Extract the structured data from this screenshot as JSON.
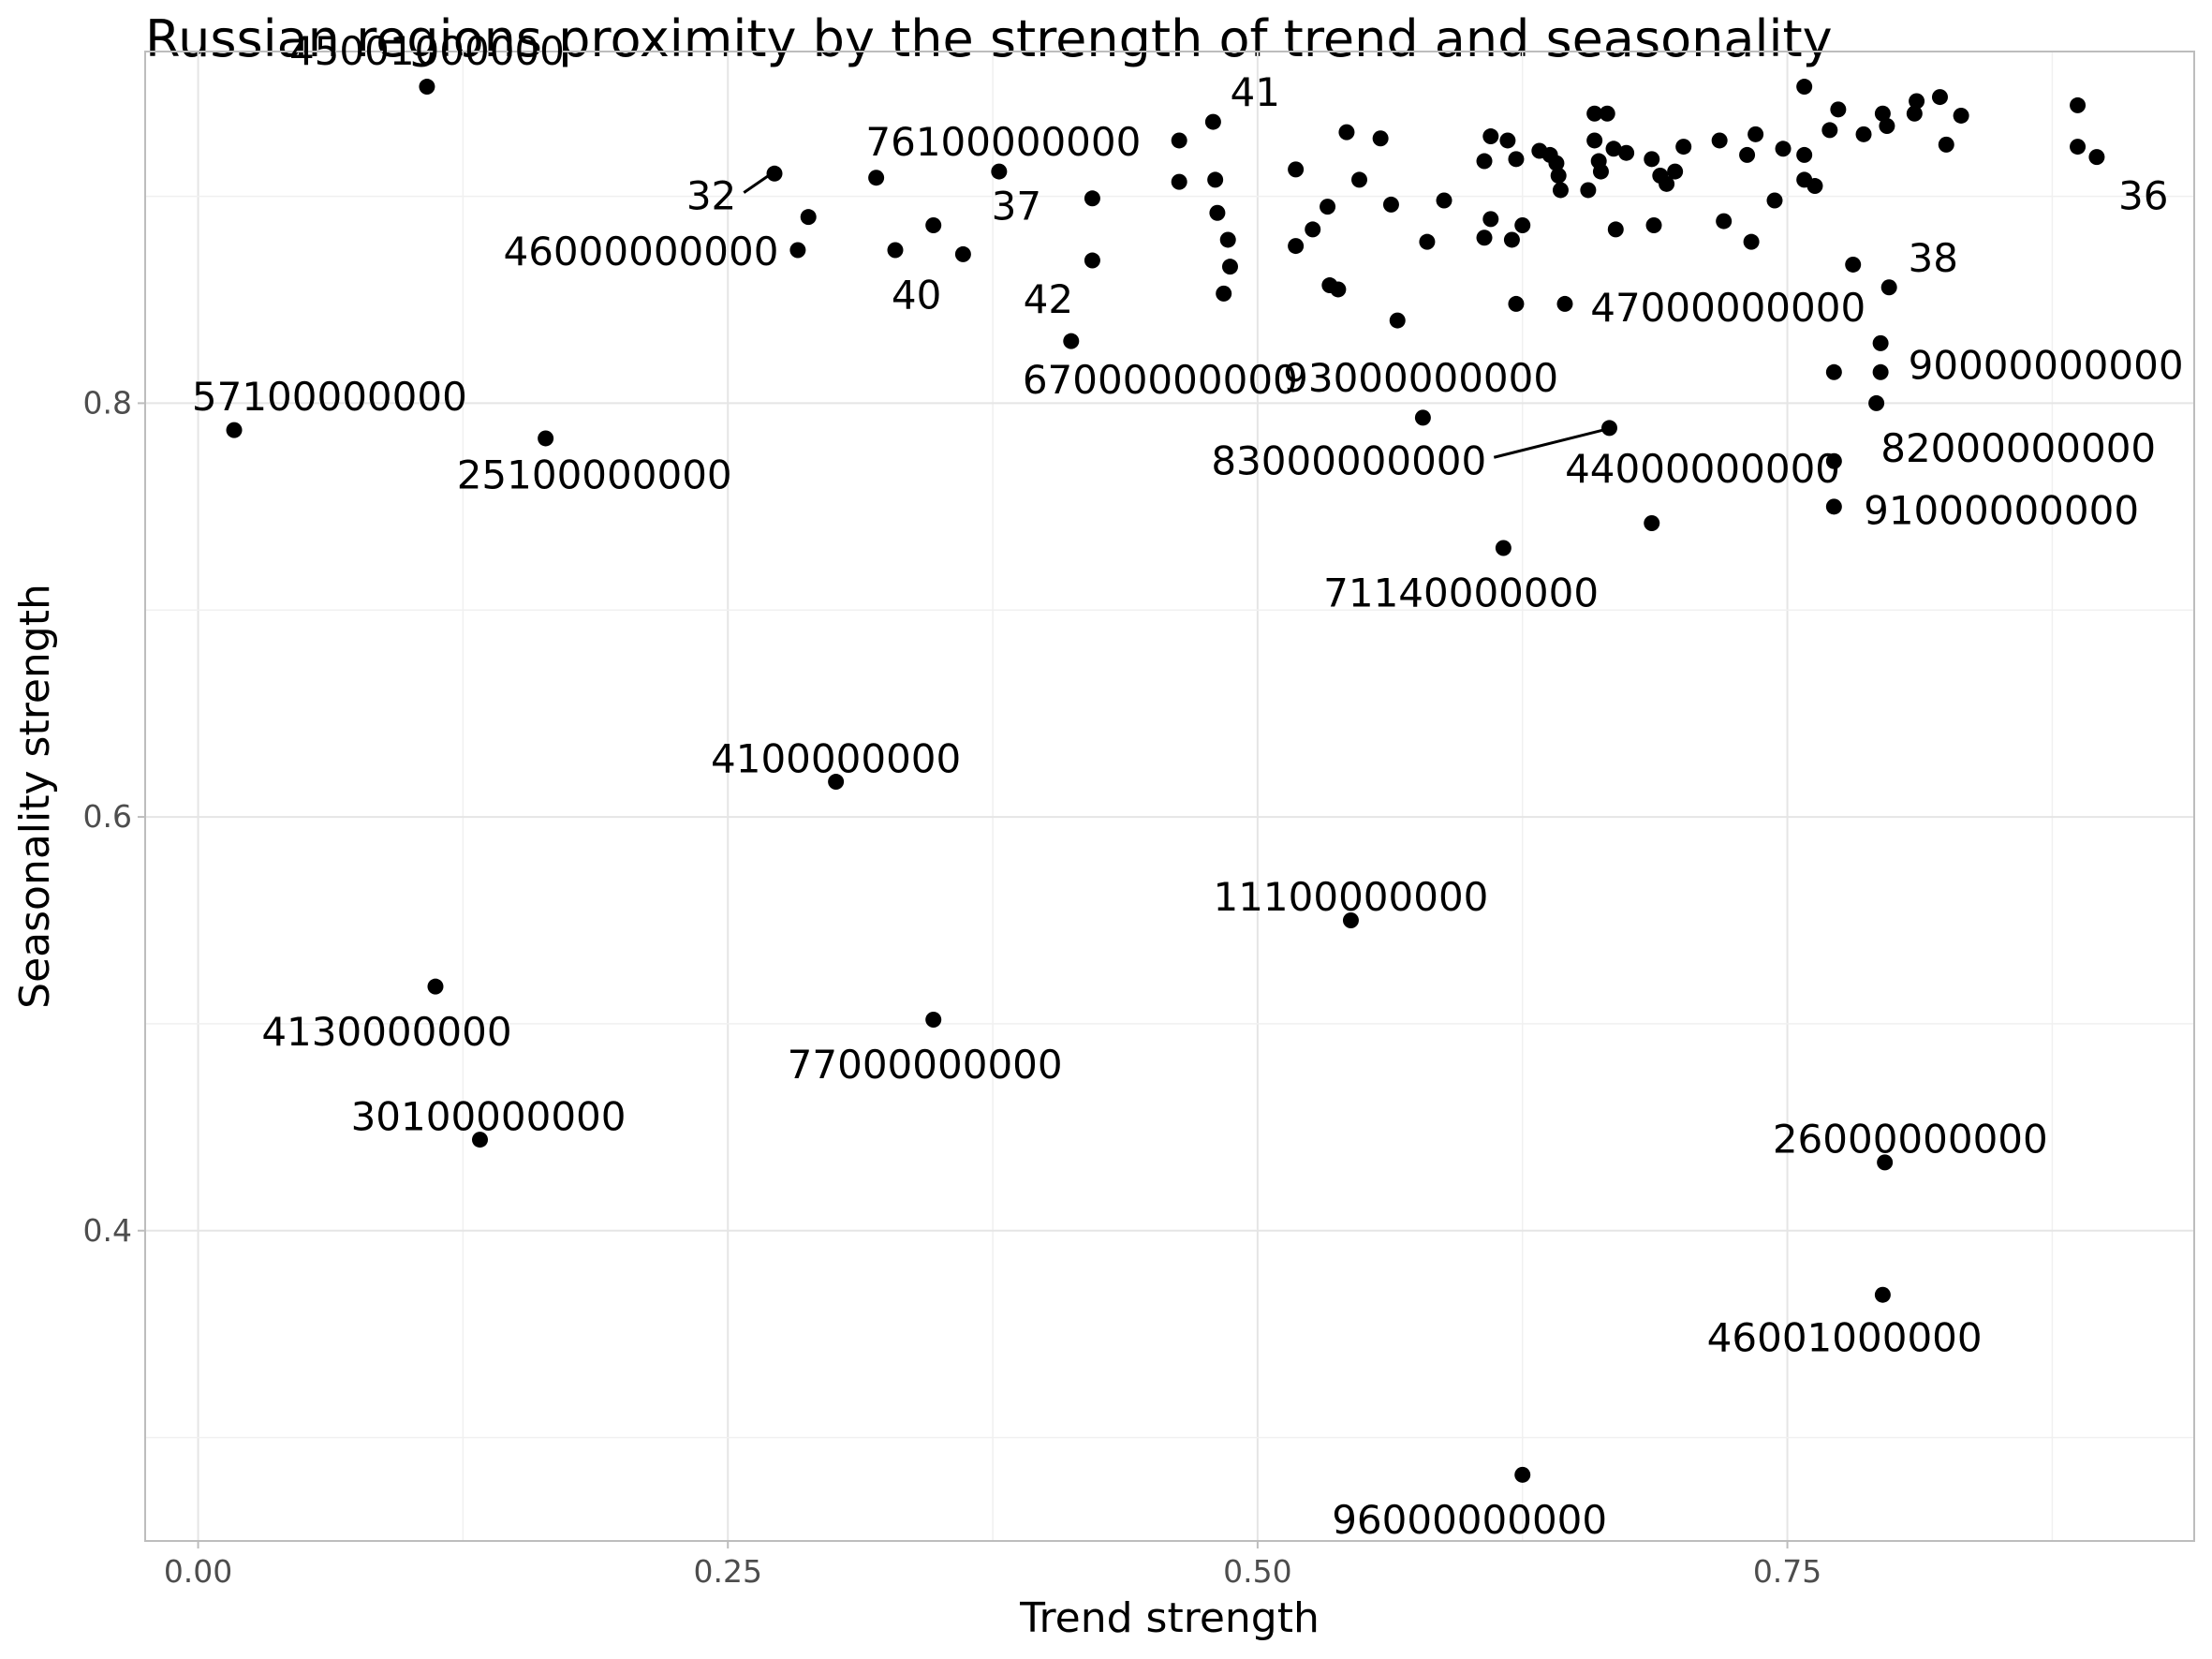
{
  "chart_data": {
    "type": "scatter",
    "title": "Russian regions proximity by the strength of trend and seasonality",
    "xlabel": "Trend strength",
    "ylabel": "Seasonality strength",
    "xlim": [
      -0.025,
      0.942
    ],
    "ylim": [
      0.25,
      0.97
    ],
    "x_ticks": [
      0.0,
      0.25,
      0.5,
      0.75
    ],
    "x_tick_labels": [
      "0.00",
      "0.25",
      "0.50",
      "0.75"
    ],
    "y_ticks": [
      0.4,
      0.6,
      0.8
    ],
    "y_tick_labels": [
      "0.4",
      "0.6",
      "0.8"
    ],
    "grid": true,
    "legend": "none",
    "point_color": "#000000",
    "points": [
      {
        "x": 0.108,
        "y": 0.953,
        "label": "45001000000",
        "lx": 0.108,
        "ly": 0.97,
        "anchor": "middle"
      },
      {
        "x": 0.272,
        "y": 0.911,
        "label": "76100000000",
        "lx": 0.38,
        "ly": 0.926,
        "anchor": "middle"
      },
      {
        "x": 0.272,
        "y": 0.911,
        "label": "32",
        "lx": 0.254,
        "ly": 0.9,
        "anchor": "end",
        "leader": true
      },
      {
        "x": 0.288,
        "y": 0.89
      },
      {
        "x": 0.32,
        "y": 0.909
      },
      {
        "x": 0.329,
        "y": 0.874,
        "label": "40",
        "lx": 0.339,
        "ly": 0.852,
        "anchor": "middle"
      },
      {
        "x": 0.347,
        "y": 0.886
      },
      {
        "x": 0.361,
        "y": 0.872
      },
      {
        "x": 0.378,
        "y": 0.912
      },
      {
        "x": 0.283,
        "y": 0.874,
        "label": "46000000000",
        "lx": 0.209,
        "ly": 0.873,
        "anchor": "middle"
      },
      {
        "x": 0.422,
        "y": 0.899,
        "label": "37",
        "lx": 0.398,
        "ly": 0.895,
        "anchor": "end"
      },
      {
        "x": 0.422,
        "y": 0.869,
        "label": "42",
        "lx": 0.413,
        "ly": 0.85,
        "anchor": "end"
      },
      {
        "x": 0.412,
        "y": 0.83,
        "label": "67000000000",
        "lx": 0.454,
        "ly": 0.811,
        "anchor": "middle"
      },
      {
        "x": 0.463,
        "y": 0.927
      },
      {
        "x": 0.463,
        "y": 0.907
      },
      {
        "x": 0.479,
        "y": 0.936,
        "label": "41",
        "lx": 0.487,
        "ly": 0.95,
        "anchor": "start"
      },
      {
        "x": 0.48,
        "y": 0.908
      },
      {
        "x": 0.481,
        "y": 0.892
      },
      {
        "x": 0.486,
        "y": 0.879
      },
      {
        "x": 0.487,
        "y": 0.866
      },
      {
        "x": 0.484,
        "y": 0.853
      },
      {
        "x": 0.518,
        "y": 0.913
      },
      {
        "x": 0.518,
        "y": 0.876
      },
      {
        "x": 0.526,
        "y": 0.884
      },
      {
        "x": 0.533,
        "y": 0.895
      },
      {
        "x": 0.534,
        "y": 0.857
      },
      {
        "x": 0.538,
        "y": 0.855
      },
      {
        "x": 0.542,
        "y": 0.931
      },
      {
        "x": 0.548,
        "y": 0.908
      },
      {
        "x": 0.558,
        "y": 0.928
      },
      {
        "x": 0.563,
        "y": 0.896
      },
      {
        "x": 0.566,
        "y": 0.84
      },
      {
        "x": 0.58,
        "y": 0.878
      },
      {
        "x": 0.588,
        "y": 0.898
      },
      {
        "x": 0.578,
        "y": 0.793,
        "label": "93000000000",
        "lx": 0.577,
        "ly": 0.812,
        "anchor": "middle"
      },
      {
        "x": 0.607,
        "y": 0.917
      },
      {
        "x": 0.607,
        "y": 0.88
      },
      {
        "x": 0.61,
        "y": 0.929
      },
      {
        "x": 0.61,
        "y": 0.889
      },
      {
        "x": 0.618,
        "y": 0.927
      },
      {
        "x": 0.62,
        "y": 0.879
      },
      {
        "x": 0.622,
        "y": 0.918
      },
      {
        "x": 0.625,
        "y": 0.886
      },
      {
        "x": 0.622,
        "y": 0.848
      },
      {
        "x": 0.633,
        "y": 0.922
      },
      {
        "x": 0.638,
        "y": 0.92
      },
      {
        "x": 0.641,
        "y": 0.916
      },
      {
        "x": 0.642,
        "y": 0.91
      },
      {
        "x": 0.643,
        "y": 0.903
      },
      {
        "x": 0.645,
        "y": 0.848,
        "label": "47000000000",
        "lx": 0.722,
        "ly": 0.846,
        "anchor": "middle"
      },
      {
        "x": 0.656,
        "y": 0.903
      },
      {
        "x": 0.659,
        "y": 0.94
      },
      {
        "x": 0.659,
        "y": 0.927
      },
      {
        "x": 0.661,
        "y": 0.917
      },
      {
        "x": 0.662,
        "y": 0.912
      },
      {
        "x": 0.665,
        "y": 0.94
      },
      {
        "x": 0.666,
        "y": 0.788,
        "label": "83000000000",
        "lx": 0.608,
        "ly": 0.772,
        "anchor": "end",
        "leader": true
      },
      {
        "x": 0.668,
        "y": 0.923
      },
      {
        "x": 0.669,
        "y": 0.884
      },
      {
        "x": 0.674,
        "y": 0.921
      },
      {
        "x": 0.686,
        "y": 0.918
      },
      {
        "x": 0.687,
        "y": 0.886
      },
      {
        "x": 0.69,
        "y": 0.91
      },
      {
        "x": 0.693,
        "y": 0.906
      },
      {
        "x": 0.697,
        "y": 0.912
      },
      {
        "x": 0.701,
        "y": 0.924
      },
      {
        "x": 0.686,
        "y": 0.742,
        "label": "44000000000",
        "lx": 0.71,
        "ly": 0.768,
        "anchor": "middle"
      },
      {
        "x": 0.616,
        "y": 0.73,
        "label": "71140000000",
        "lx": 0.596,
        "ly": 0.708,
        "anchor": "middle"
      },
      {
        "x": 0.718,
        "y": 0.927
      },
      {
        "x": 0.72,
        "y": 0.888
      },
      {
        "x": 0.731,
        "y": 0.92
      },
      {
        "x": 0.733,
        "y": 0.878
      },
      {
        "x": 0.735,
        "y": 0.93
      },
      {
        "x": 0.744,
        "y": 0.898
      },
      {
        "x": 0.748,
        "y": 0.923
      },
      {
        "x": 0.758,
        "y": 0.953
      },
      {
        "x": 0.758,
        "y": 0.92
      },
      {
        "x": 0.758,
        "y": 0.908
      },
      {
        "x": 0.763,
        "y": 0.905
      },
      {
        "x": 0.77,
        "y": 0.932
      },
      {
        "x": 0.774,
        "y": 0.942
      },
      {
        "x": 0.781,
        "y": 0.867
      },
      {
        "x": 0.786,
        "y": 0.93
      },
      {
        "x": 0.792,
        "y": 0.8
      },
      {
        "x": 0.794,
        "y": 0.829
      },
      {
        "x": 0.794,
        "y": 0.815
      },
      {
        "x": 0.795,
        "y": 0.94
      },
      {
        "x": 0.797,
        "y": 0.934
      },
      {
        "x": 0.798,
        "y": 0.856,
        "label": "38",
        "lx": 0.807,
        "ly": 0.87,
        "anchor": "start"
      },
      {
        "x": 0.772,
        "y": 0.772,
        "label": "82000000000",
        "lx": 0.859,
        "ly": 0.778,
        "anchor": "middle"
      },
      {
        "x": 0.772,
        "y": 0.815,
        "label": "90000000000",
        "lx": 0.872,
        "ly": 0.818,
        "anchor": "middle"
      },
      {
        "x": 0.772,
        "y": 0.75,
        "label": "91000000000",
        "lx": 0.851,
        "ly": 0.748,
        "anchor": "middle"
      },
      {
        "x": 0.81,
        "y": 0.94
      },
      {
        "x": 0.811,
        "y": 0.946
      },
      {
        "x": 0.822,
        "y": 0.948
      },
      {
        "x": 0.825,
        "y": 0.925
      },
      {
        "x": 0.832,
        "y": 0.939
      },
      {
        "x": 0.887,
        "y": 0.944
      },
      {
        "x": 0.887,
        "y": 0.924
      },
      {
        "x": 0.896,
        "y": 0.919,
        "label": "36",
        "lx": 0.918,
        "ly": 0.9,
        "anchor": "middle"
      },
      {
        "x": 0.017,
        "y": 0.787,
        "label": "57100000000",
        "lx": 0.062,
        "ly": 0.803,
        "anchor": "middle"
      },
      {
        "x": 0.164,
        "y": 0.783,
        "label": "25100000000",
        "lx": 0.187,
        "ly": 0.765,
        "anchor": "middle"
      },
      {
        "x": 0.301,
        "y": 0.617,
        "label": "4100000000",
        "lx": 0.301,
        "ly": 0.628,
        "anchor": "middle"
      },
      {
        "x": 0.544,
        "y": 0.55,
        "label": "11100000000",
        "lx": 0.544,
        "ly": 0.561,
        "anchor": "middle"
      },
      {
        "x": 0.112,
        "y": 0.518,
        "label": "4130000000",
        "lx": 0.089,
        "ly": 0.496,
        "anchor": "middle"
      },
      {
        "x": 0.347,
        "y": 0.502,
        "label": "77000000000",
        "lx": 0.343,
        "ly": 0.48,
        "anchor": "middle"
      },
      {
        "x": 0.133,
        "y": 0.444,
        "label": "30100000000",
        "lx": 0.137,
        "ly": 0.455,
        "anchor": "middle"
      },
      {
        "x": 0.796,
        "y": 0.433,
        "label": "26000000000",
        "lx": 0.808,
        "ly": 0.444,
        "anchor": "middle"
      },
      {
        "x": 0.795,
        "y": 0.369,
        "label": "46001000000",
        "lx": 0.777,
        "ly": 0.348,
        "anchor": "middle"
      },
      {
        "x": 0.625,
        "y": 0.282,
        "label": "96000000000",
        "lx": 0.6,
        "ly": 0.26,
        "anchor": "middle"
      }
    ]
  }
}
